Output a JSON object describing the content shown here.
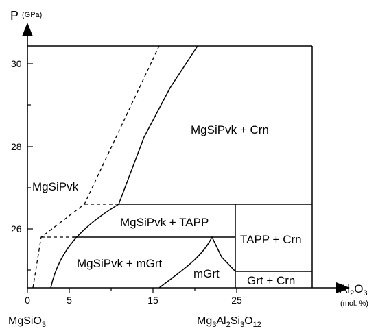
{
  "y_axis": {
    "symbol": "P",
    "unit": "(GPa)",
    "ticks": [
      {
        "value": 30,
        "label": "30"
      },
      {
        "value": 28,
        "label": "28"
      },
      {
        "value": 26,
        "label": "26"
      }
    ]
  },
  "x_axis": {
    "symbol_parts": [
      "Al",
      "2",
      "O",
      "3"
    ],
    "unit": "(mol. %)",
    "ticks": [
      {
        "value": 0,
        "label": "0"
      },
      {
        "value": 5,
        "label": "5"
      },
      {
        "value": 15,
        "label": "15"
      },
      {
        "value": 25,
        "label": "25"
      }
    ],
    "left_endmember_parts": [
      "MgSiO",
      "3"
    ],
    "right_endmember_parts": [
      "Mg",
      "3",
      "Al",
      "2",
      "Si",
      "3",
      "O",
      "12"
    ]
  },
  "phase_fields": [
    {
      "label": "MgSiPvk + Crn"
    },
    {
      "label": "MgSiPvk"
    },
    {
      "label": "MgSiPvk + TAPP"
    },
    {
      "label": "TAPP + Crn"
    },
    {
      "label": "MgSiPvk + mGrt"
    },
    {
      "label": "mGrt"
    },
    {
      "label": "Grt + Crn"
    }
  ]
}
